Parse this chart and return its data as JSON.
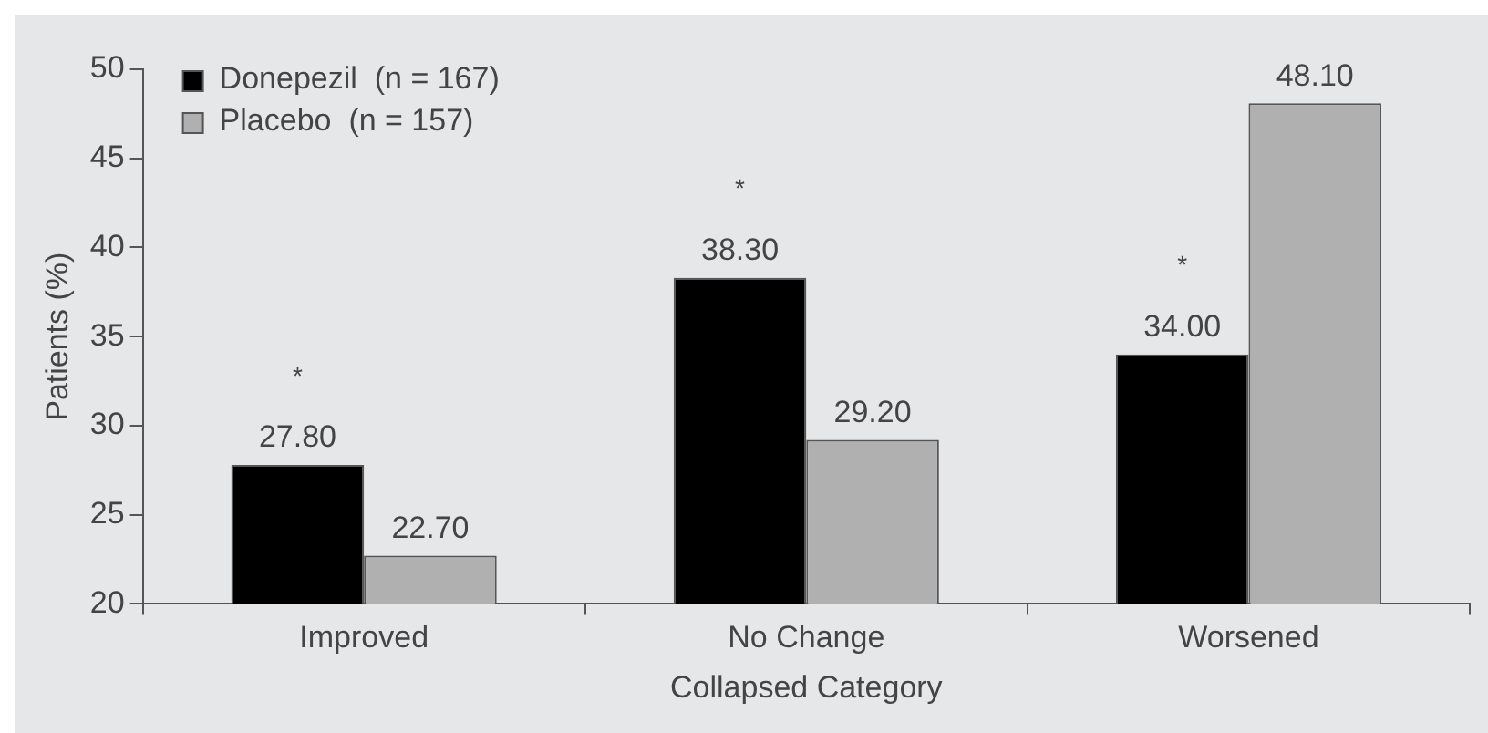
{
  "chart_data": {
    "type": "bar",
    "xlabel": "Collapsed Category",
    "ylabel": "Patients (%)",
    "categories": [
      "Improved",
      "No Change",
      "Worsened"
    ],
    "series": [
      {
        "name": "Donepezil  (n = 167)",
        "color": "#000000",
        "values": [
          27.8,
          38.3,
          34.0
        ],
        "value_labels": [
          "27.80",
          "38.30",
          "34.00"
        ]
      },
      {
        "name": "Placebo  (n = 157)",
        "color": "#b0b0b0",
        "values": [
          22.7,
          29.2,
          48.1
        ],
        "value_labels": [
          "22.70",
          "29.20",
          "48.10"
        ]
      }
    ],
    "ylim": [
      20,
      50
    ],
    "yticks": [
      20,
      25,
      30,
      35,
      40,
      45,
      50
    ],
    "grid": false,
    "legend": "top left",
    "annotations": [
      "*",
      "*",
      "*"
    ]
  }
}
